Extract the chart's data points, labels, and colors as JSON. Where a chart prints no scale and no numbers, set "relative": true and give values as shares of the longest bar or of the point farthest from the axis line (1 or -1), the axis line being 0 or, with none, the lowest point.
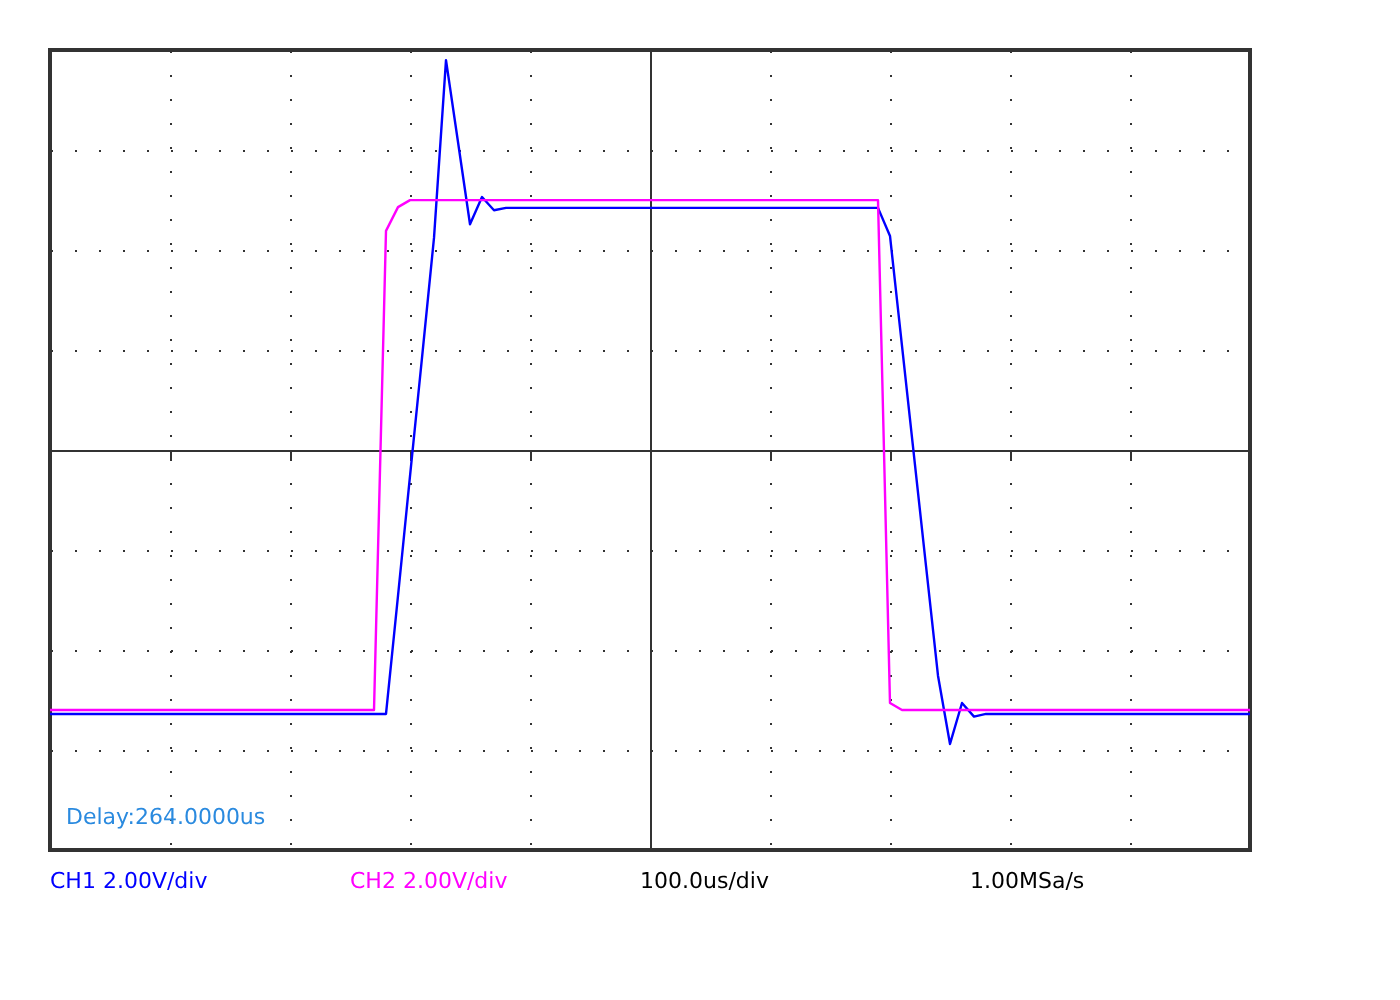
{
  "chart_data": {
    "type": "line",
    "relative": true,
    "grid": true,
    "legend": false,
    "line_style": "solid",
    "categories": [
      null,
      null,
      null,
      null,
      null,
      null,
      null,
      null,
      null,
      null,
      null,
      null,
      null,
      null,
      null,
      null,
      null,
      null,
      null,
      null,
      null,
      null,
      null,
      null,
      null,
      null,
      null,
      null,
      null,
      null,
      null,
      null,
      null,
      null,
      null,
      null,
      null,
      null,
      null,
      null,
      null,
      null,
      null,
      null,
      null,
      null,
      null,
      null,
      null,
      null,
      null,
      null,
      null,
      null,
      null,
      null,
      null,
      null,
      null,
      null,
      null,
      null,
      null,
      null,
      null,
      null,
      null,
      null,
      null,
      null,
      null,
      null,
      null,
      null,
      null,
      null,
      null,
      null,
      null,
      null,
      null,
      null,
      null,
      null,
      null,
      null,
      null,
      null,
      null,
      null,
      null,
      null,
      null,
      null,
      null,
      null,
      null,
      null,
      null,
      null,
      null
    ],
    "series": [
      {
        "name": "CH1 2.00V/div",
        "color": "#0000ff",
        "values": [
          -0.677,
          -0.677,
          -0.677,
          -0.677,
          -0.677,
          -0.677,
          -0.677,
          -0.677,
          -0.677,
          -0.677,
          -0.677,
          -0.677,
          -0.677,
          -0.677,
          -0.677,
          -0.677,
          -0.677,
          -0.677,
          -0.677,
          -0.677,
          -0.677,
          -0.677,
          -0.677,
          -0.677,
          -0.677,
          -0.677,
          -0.677,
          -0.677,
          -0.677,
          -0.374,
          -0.067,
          0.236,
          0.544,
          1.0,
          0.79,
          0.579,
          0.649,
          0.615,
          0.621,
          0.621,
          0.621,
          0.621,
          0.621,
          0.621,
          0.621,
          0.621,
          0.621,
          0.621,
          0.621,
          0.621,
          0.621,
          0.621,
          0.621,
          0.621,
          0.621,
          0.621,
          0.621,
          0.621,
          0.621,
          0.621,
          0.621,
          0.621,
          0.621,
          0.621,
          0.621,
          0.621,
          0.621,
          0.621,
          0.621,
          0.621,
          0.549,
          0.267,
          -0.015,
          -0.297,
          -0.579,
          -0.754,
          -0.649,
          -0.684,
          -0.677,
          -0.677,
          -0.677,
          -0.677,
          -0.677,
          -0.677,
          -0.677,
          -0.677,
          -0.677,
          -0.677,
          -0.677,
          -0.677,
          -0.677,
          -0.677,
          -0.677,
          -0.677,
          -0.677,
          -0.677,
          -0.677,
          -0.677,
          -0.677,
          -0.677,
          -0.677
        ]
      },
      {
        "name": "CH2 2.00V/div",
        "color": "#ff00ff",
        "values": [
          -0.667,
          -0.667,
          -0.667,
          -0.667,
          -0.667,
          -0.667,
          -0.667,
          -0.667,
          -0.667,
          -0.667,
          -0.667,
          -0.667,
          -0.667,
          -0.667,
          -0.667,
          -0.667,
          -0.667,
          -0.667,
          -0.667,
          -0.667,
          -0.667,
          -0.667,
          -0.667,
          -0.667,
          -0.667,
          -0.667,
          -0.667,
          -0.667,
          0.562,
          0.623,
          0.641,
          0.641,
          0.641,
          0.641,
          0.641,
          0.641,
          0.641,
          0.641,
          0.641,
          0.641,
          0.641,
          0.641,
          0.641,
          0.641,
          0.641,
          0.641,
          0.641,
          0.641,
          0.641,
          0.641,
          0.641,
          0.641,
          0.641,
          0.641,
          0.641,
          0.641,
          0.641,
          0.641,
          0.641,
          0.641,
          0.641,
          0.641,
          0.641,
          0.641,
          0.641,
          0.641,
          0.641,
          0.641,
          0.641,
          0.641,
          -0.649,
          -0.667,
          -0.667,
          -0.667,
          -0.667,
          -0.667,
          -0.667,
          -0.667,
          -0.667,
          -0.667,
          -0.667,
          -0.667,
          -0.667,
          -0.667,
          -0.667,
          -0.667,
          -0.667,
          -0.667,
          -0.667,
          -0.667,
          -0.667,
          -0.667,
          -0.667,
          -0.667,
          -0.667,
          -0.667,
          -0.667,
          -0.667,
          -0.667,
          -0.667,
          -0.667
        ]
      }
    ],
    "annotations": [
      "Delay:264.0000us",
      "100.0us/div",
      "1.00MSa/s"
    ]
  }
}
